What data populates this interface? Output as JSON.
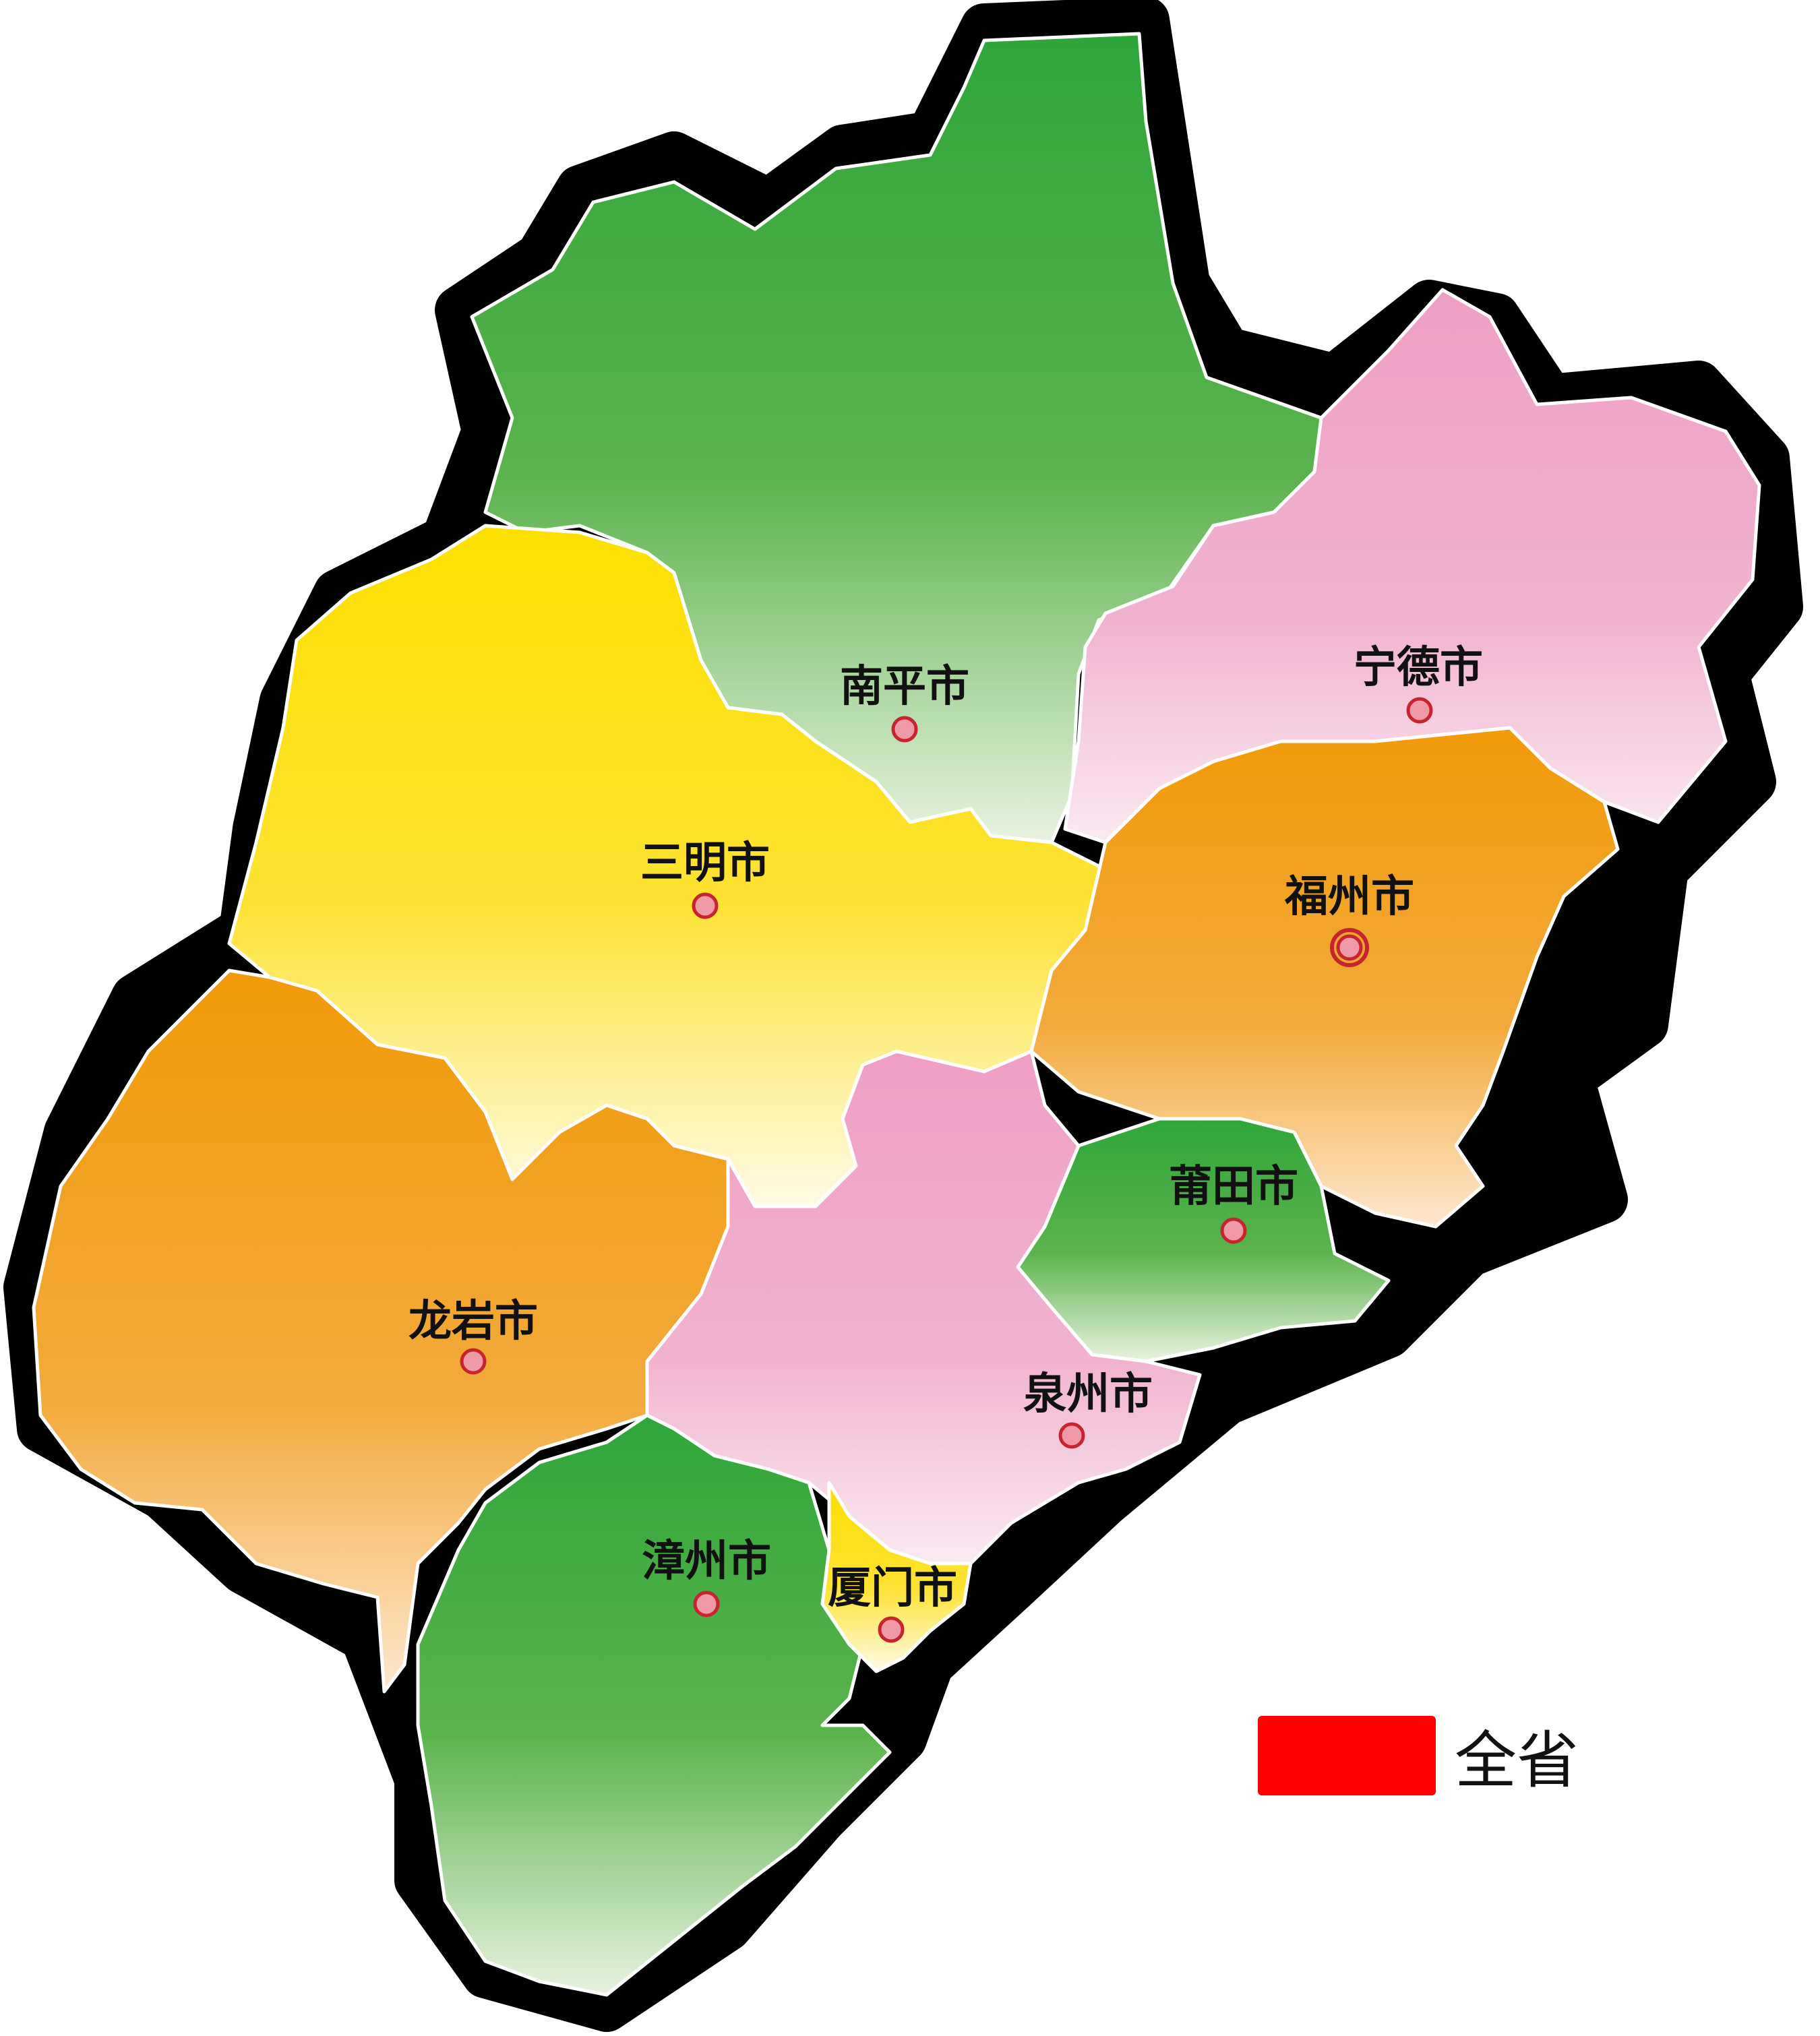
{
  "colors": {
    "green": "#2fa63a",
    "yellow": "#fde000",
    "orange": "#f29a08",
    "pink": "#ef9ec5",
    "outline": "#000000",
    "legend": "#ff0000"
  },
  "cities": [
    {
      "id": "nanping",
      "name": "南平市",
      "fill": "green",
      "capital": false
    },
    {
      "id": "ningde",
      "name": "宁德市",
      "fill": "pink",
      "capital": false
    },
    {
      "id": "sanming",
      "name": "三明市",
      "fill": "yellow",
      "capital": false
    },
    {
      "id": "fuzhou",
      "name": "福州市",
      "fill": "orange",
      "capital": true
    },
    {
      "id": "putian",
      "name": "莆田市",
      "fill": "green",
      "capital": false
    },
    {
      "id": "longyan",
      "name": "龙岩市",
      "fill": "orange",
      "capital": false
    },
    {
      "id": "quanzhou",
      "name": "泉州市",
      "fill": "pink",
      "capital": false
    },
    {
      "id": "zhangzhou",
      "name": "漳州市",
      "fill": "green",
      "capital": false
    },
    {
      "id": "xiamen",
      "name": "厦门市",
      "fill": "yellow",
      "capital": false
    }
  ],
  "legend": {
    "label": "全省",
    "color": "#ff0000"
  }
}
